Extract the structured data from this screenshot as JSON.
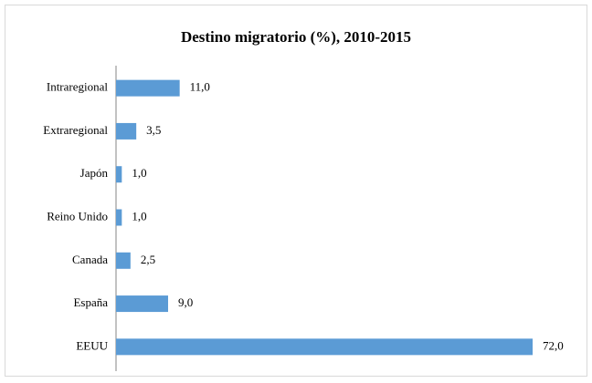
{
  "chart_data": {
    "type": "barh",
    "title": "Destino migratorio (%), 2010-2015",
    "categories": [
      "Intraregional",
      "Extraregional",
      "Japón",
      "Reino Unido",
      "Canada",
      "España",
      "EEUU"
    ],
    "values": [
      11,
      3.5,
      1,
      1,
      2.5,
      9,
      72
    ],
    "value_labels": [
      "11,0",
      "3,5",
      "1,0",
      "1,0",
      "2,5",
      "9,0",
      "72,0"
    ],
    "color": "#5b9bd5"
  }
}
